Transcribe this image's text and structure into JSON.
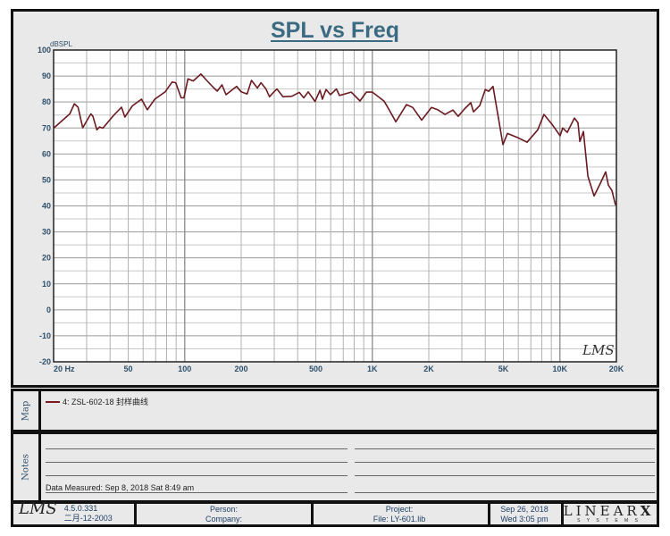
{
  "title": "SPL vs Freq",
  "chart_data": {
    "type": "line",
    "title": "SPL vs Freq",
    "ylabel": "dBSPL",
    "xlabel": "",
    "xscale": "log",
    "xlim": [
      20,
      20000
    ],
    "ylim": [
      -20,
      100
    ],
    "grid": true,
    "yticks": [
      "100",
      "90",
      "80",
      "70",
      "60",
      "50",
      "40",
      "30",
      "20",
      "10",
      "0",
      "-10",
      "-20"
    ],
    "xticks": [
      {
        "v": 20,
        "label": "20  Hz"
      },
      {
        "v": 50,
        "label": "50"
      },
      {
        "v": 100,
        "label": "100"
      },
      {
        "v": 200,
        "label": "200"
      },
      {
        "v": 500,
        "label": "500"
      },
      {
        "v": 1000,
        "label": "1K"
      },
      {
        "v": 2000,
        "label": "2K"
      },
      {
        "v": 5000,
        "label": "5K"
      },
      {
        "v": 10000,
        "label": "10K"
      },
      {
        "v": 20000,
        "label": "20K"
      }
    ],
    "series": [
      {
        "name": "4: ZSL-602-18 封样曲线",
        "color": "#6b1a20",
        "x": [
          20,
          24.4,
          25.8,
          27,
          28.6,
          31.6,
          32.4,
          34,
          35.2,
          36.6,
          41.6,
          46,
          48,
          52.6,
          58.8,
          63.2,
          69.3,
          78.7,
          85.7,
          89.5,
          95.7,
          99,
          104,
          111,
          122,
          131,
          143,
          149,
          158,
          166,
          189,
          200,
          215,
          227,
          244,
          255,
          271,
          283,
          297,
          310,
          334,
          372,
          408,
          431,
          455,
          495,
          526,
          542,
          567,
          598,
          644,
          668,
          771,
          860,
          929,
          1000,
          1156,
          1222,
          1334,
          1520,
          1641,
          1832,
          2066,
          2233,
          2438,
          2690,
          2870,
          3098,
          3350,
          3460,
          3735,
          4000,
          4170,
          4400,
          4970,
          5250,
          5990,
          6680,
          7620,
          8220,
          9080,
          10020,
          10350,
          10940,
          11950,
          12480,
          12770,
          13340,
          14100,
          15200,
          16400,
          17540,
          18120,
          18940,
          19780
        ],
        "y": [
          69.9,
          75.4,
          79.3,
          78,
          70.1,
          75.4,
          74.5,
          69.3,
          70.4,
          69.9,
          74.7,
          78,
          74.2,
          78.5,
          81.1,
          77,
          81.1,
          83.9,
          87.7,
          87.4,
          81.6,
          81.6,
          88.9,
          88.1,
          90.8,
          88.3,
          85.4,
          84.2,
          86.6,
          82.8,
          86,
          83.9,
          83.1,
          88.3,
          85.4,
          87.4,
          85,
          82,
          83.7,
          85,
          82,
          82.2,
          83.7,
          81.6,
          83.9,
          80.2,
          84.5,
          81.1,
          84.8,
          82.8,
          85,
          82.5,
          83.8,
          80.4,
          83.8,
          83.8,
          80.3,
          77.3,
          72.4,
          79,
          77.9,
          73,
          77.9,
          77,
          75.2,
          76.9,
          74.5,
          77.3,
          79.7,
          76.2,
          78.6,
          84.8,
          84.1,
          86,
          63.6,
          67.9,
          66.2,
          64.5,
          69.3,
          75.2,
          71.4,
          67,
          70,
          68.3,
          73.8,
          72,
          64.8,
          68.6,
          51.4,
          43.8,
          48.6,
          53.1,
          48,
          45.9,
          40.3
        ]
      }
    ]
  },
  "watermark": "LMS",
  "map": {
    "label": "Map",
    "legend": "4: ZSL-602-18  封样曲线"
  },
  "notes": {
    "label": "Notes",
    "measured": "Data Measured: Sep  8, 2018  Sat  8:49 am"
  },
  "footer": {
    "logo": "LMS",
    "version": "4.5.0.331",
    "build_date": "二月-12-2003",
    "person": "Person:",
    "company": "Company:",
    "project": "Project:",
    "file": "File: LY-601.lib",
    "date": "Sep 26, 2018",
    "time": "Wed  3:05 pm",
    "brand": "LINEAR",
    "brand_x": "X",
    "brand_sub": "S Y S T E M S"
  }
}
